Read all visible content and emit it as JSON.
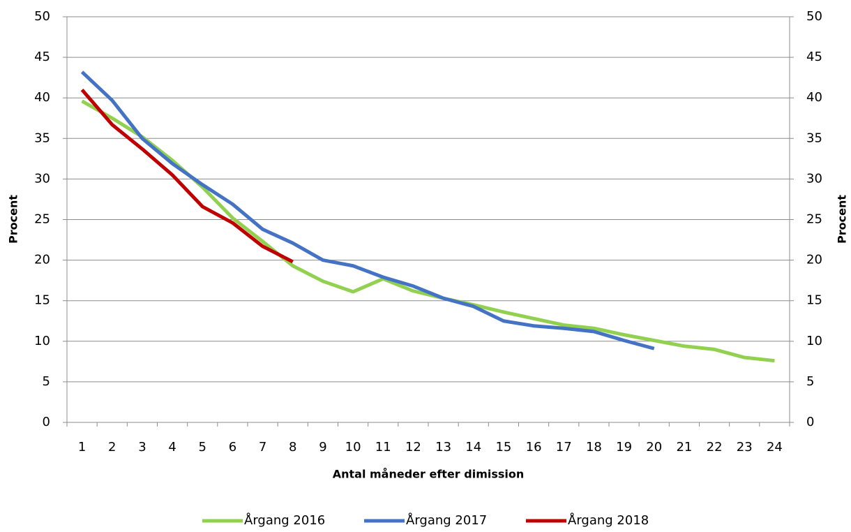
{
  "chart_data": {
    "type": "line",
    "x_label": "Antal måneder efter dimission",
    "y_label": "Procent",
    "y2_label": "Procent",
    "categories": [
      "1",
      "2",
      "3",
      "4",
      "5",
      "6",
      "7",
      "8",
      "9",
      "10",
      "11",
      "12",
      "13",
      "14",
      "15",
      "16",
      "17",
      "18",
      "19",
      "20",
      "21",
      "22",
      "23",
      "24"
    ],
    "series": [
      {
        "name": "Årgang 2016",
        "color": "#92d050",
        "values": [
          39.6,
          37.5,
          35.2,
          32.3,
          29.0,
          25.2,
          22.3,
          19.3,
          17.4,
          16.1,
          17.7,
          16.2,
          15.3,
          14.5,
          13.6,
          12.8,
          12.0,
          11.6,
          10.8,
          10.1,
          9.4,
          9.0,
          8.0,
          7.6
        ]
      },
      {
        "name": "Årgang 2017",
        "color": "#4472c4",
        "values": [
          43.2,
          39.7,
          35.0,
          31.9,
          29.3,
          26.9,
          23.8,
          22.1,
          20.0,
          19.3,
          17.9,
          16.8,
          15.3,
          14.3,
          12.5,
          11.9,
          11.6,
          11.2,
          10.1,
          9.1,
          null,
          null,
          null,
          null
        ]
      },
      {
        "name": "Årgang 2018",
        "color": "#c00000",
        "values": [
          41.0,
          36.7,
          33.7,
          30.5,
          26.6,
          24.6,
          21.7,
          19.8,
          null,
          null,
          null,
          null,
          null,
          null,
          null,
          null,
          null,
          null,
          null,
          null,
          null,
          null,
          null,
          null
        ]
      }
    ],
    "ylim": [
      0,
      50
    ],
    "yticks": [
      0,
      5,
      10,
      15,
      20,
      25,
      30,
      35,
      40,
      45,
      50
    ],
    "y2lim": [
      0,
      50
    ],
    "y2ticks": [
      0,
      5,
      10,
      15,
      20,
      25,
      30,
      35,
      40,
      45,
      50
    ],
    "grid": true,
    "legend": "bottom"
  }
}
